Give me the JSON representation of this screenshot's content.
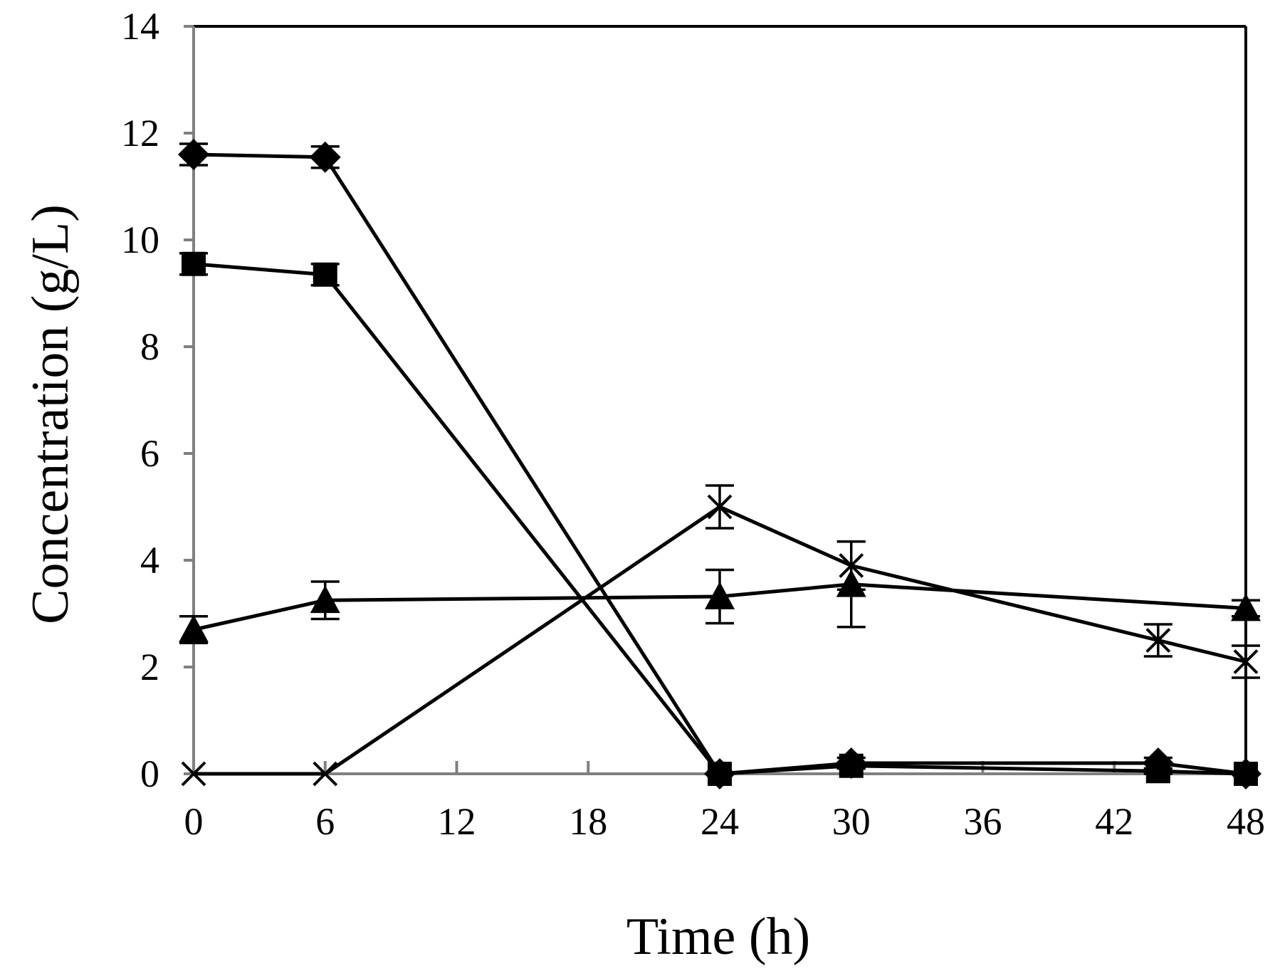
{
  "chart_data": {
    "type": "line",
    "title": "",
    "xlabel": "Time (h)",
    "ylabel": "Concentration (g/L)",
    "xlim": [
      0,
      48
    ],
    "ylim": [
      0,
      14
    ],
    "xticks": [
      0,
      6,
      12,
      18,
      24,
      30,
      36,
      42,
      48
    ],
    "yticks": [
      0,
      2,
      4,
      6,
      8,
      10,
      12,
      14
    ],
    "grid": false,
    "legend": "none",
    "colors": {
      "line": "#000000",
      "axis": "#808080",
      "frame": "#000000",
      "background": "#ffffff"
    },
    "series": [
      {
        "name": "series-diamond",
        "marker": "diamond",
        "x": [
          0,
          6,
          24,
          30,
          44,
          48
        ],
        "y": [
          11.6,
          11.55,
          0.0,
          0.2,
          0.2,
          0.0
        ],
        "err": [
          0.2,
          0.2,
          0.0,
          0.1,
          0.1,
          0.0
        ]
      },
      {
        "name": "series-square",
        "marker": "square",
        "x": [
          0,
          6,
          24,
          30,
          44,
          48
        ],
        "y": [
          9.55,
          9.35,
          0.0,
          0.15,
          0.05,
          0.0
        ],
        "err": [
          0.2,
          0.2,
          0.0,
          0.05,
          0.05,
          0.0
        ]
      },
      {
        "name": "series-triangle",
        "marker": "triangle",
        "x": [
          0,
          6,
          24,
          30,
          48
        ],
        "y": [
          2.7,
          3.25,
          3.32,
          3.55,
          3.1
        ],
        "err": [
          0.25,
          0.35,
          0.5,
          0.8,
          0.15
        ]
      },
      {
        "name": "series-cross",
        "marker": "cross",
        "x": [
          0,
          6,
          24,
          30,
          44,
          48
        ],
        "y": [
          0.0,
          0.0,
          5.0,
          3.9,
          2.5,
          2.1
        ],
        "err": [
          0.0,
          0.0,
          0.4,
          0.45,
          0.3,
          0.3
        ]
      }
    ]
  }
}
